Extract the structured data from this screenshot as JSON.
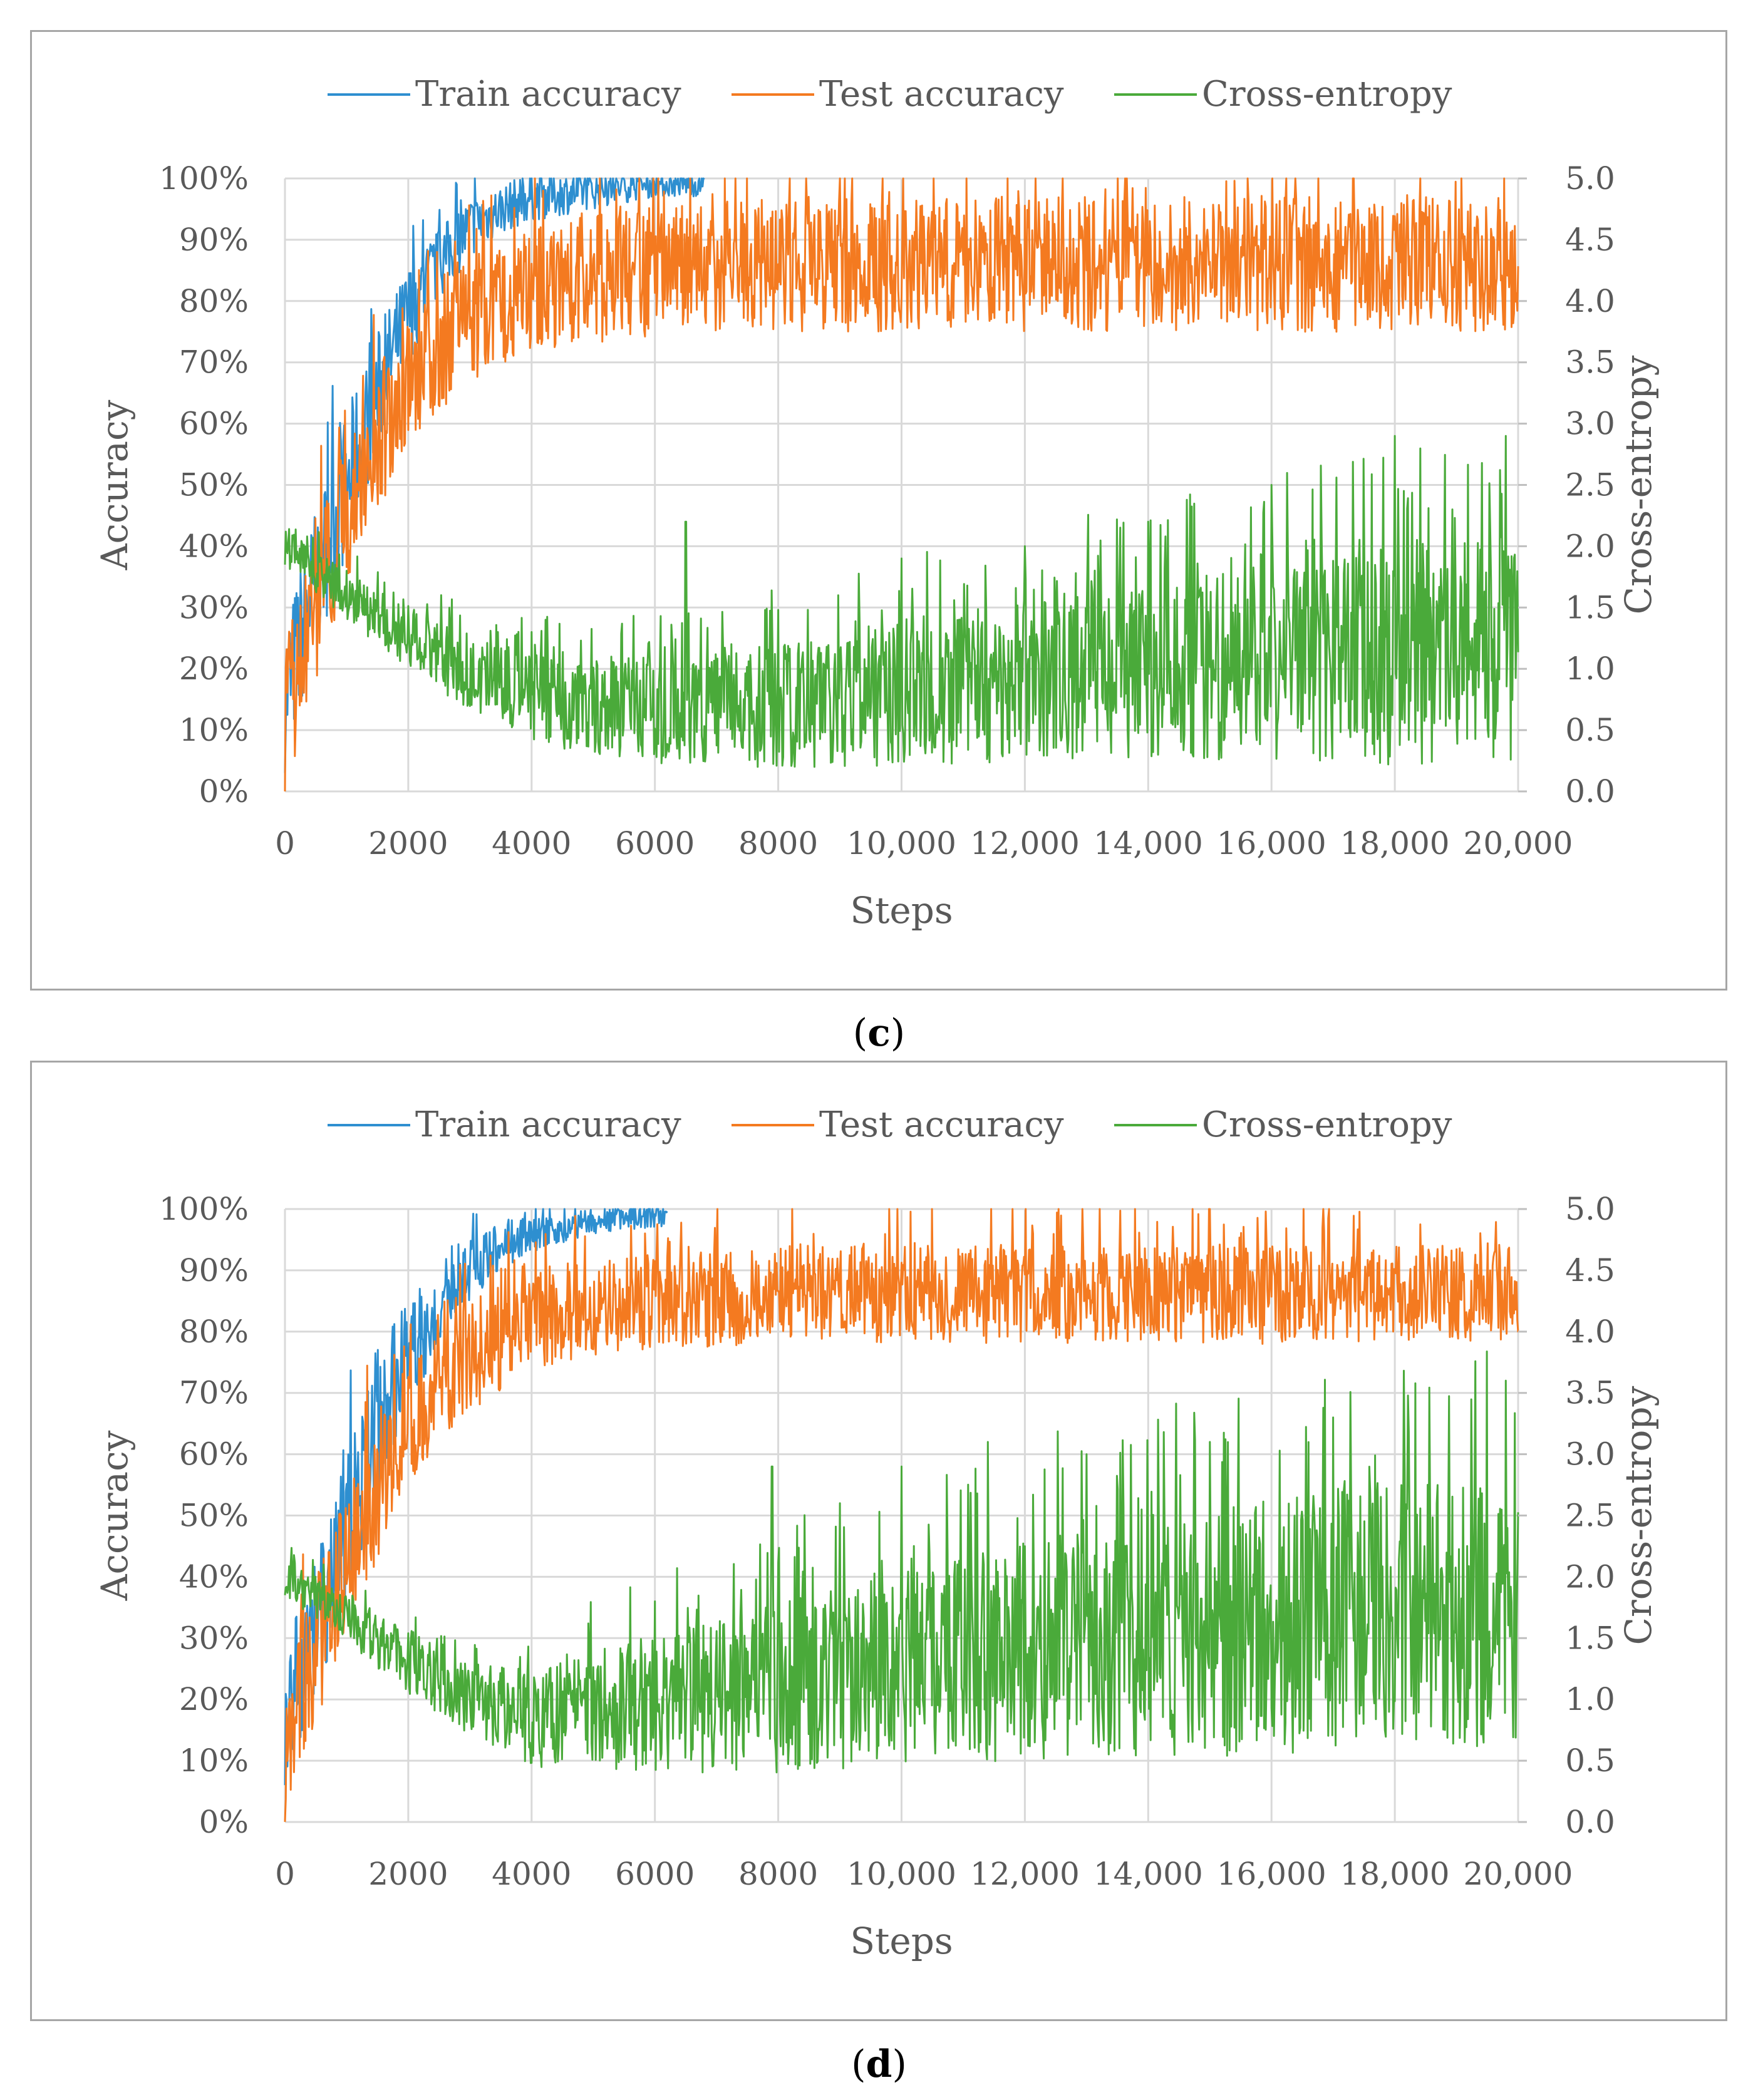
{
  "charts": [
    {
      "id": "c",
      "caption_letter": "c",
      "legend": [
        {
          "label": "Train accuracy",
          "color": "#2e8fd0"
        },
        {
          "label": "Test accuracy",
          "color": "#f47a20"
        },
        {
          "label": "Cross-entropy",
          "color": "#4aaa3a"
        }
      ]
    },
    {
      "id": "d",
      "caption_letter": "d",
      "legend": [
        {
          "label": "Train accuracy",
          "color": "#2e8fd0"
        },
        {
          "label": "Test accuracy",
          "color": "#f47a20"
        },
        {
          "label": "Cross-entropy",
          "color": "#4aaa3a"
        }
      ]
    }
  ],
  "chart_data": [
    {
      "type": "line",
      "panel": "c",
      "xlabel": "Steps",
      "ylabel": "Accuracy",
      "y2label": "Cross-entropy",
      "xlim": [
        0,
        20000
      ],
      "ylim": [
        0,
        100
      ],
      "y2lim": [
        0,
        5
      ],
      "x_ticks": [
        "0",
        "2000",
        "4000",
        "6000",
        "8000",
        "10,000",
        "12,000",
        "14,000",
        "16,000",
        "18,000",
        "20,000"
      ],
      "y_ticks": [
        "0%",
        "10%",
        "20%",
        "30%",
        "40%",
        "50%",
        "60%",
        "70%",
        "80%",
        "90%",
        "100%"
      ],
      "y2_ticks": [
        "0.0",
        "0.5",
        "1.0",
        "1.5",
        "2.0",
        "2.5",
        "3.0",
        "3.5",
        "4.0",
        "4.5",
        "5.0"
      ],
      "grid": true,
      "legend_position": "top",
      "series": [
        {
          "name": "Train accuracy",
          "color": "#2e8fd0",
          "axis": "left",
          "x": [
            0,
            500,
            1000,
            1500,
            2000,
            2500,
            3000,
            3500,
            4000,
            5000,
            6000,
            6800
          ],
          "center": [
            15,
            35,
            50,
            65,
            78,
            86,
            92,
            95,
            97,
            98,
            99,
            99
          ],
          "spread": [
            12,
            12,
            12,
            10,
            8,
            6,
            5,
            4,
            4,
            3,
            2,
            2
          ]
        },
        {
          "name": "Test accuracy",
          "color": "#f47a20",
          "axis": "left",
          "x": [
            0,
            500,
            1000,
            1500,
            2000,
            3000,
            4000,
            5000,
            6000,
            8000,
            20000
          ],
          "center": [
            12,
            30,
            45,
            57,
            67,
            77,
            82,
            84,
            85,
            86,
            86
          ],
          "spread": [
            12,
            12,
            12,
            12,
            10,
            10,
            10,
            11,
            11,
            11,
            11
          ]
        },
        {
          "name": "Cross-entropy",
          "color": "#4aaa3a",
          "axis": "right",
          "x": [
            0,
            1000,
            2000,
            3000,
            4000,
            6000,
            8000,
            10000,
            12000,
            14000,
            16000,
            18000,
            20000
          ],
          "center": [
            2.0,
            1.6,
            1.25,
            0.95,
            0.75,
            0.65,
            0.7,
            0.8,
            0.9,
            1.0,
            1.05,
            1.1,
            1.15
          ],
          "spread": [
            0.15,
            0.2,
            0.25,
            0.3,
            0.35,
            0.45,
            0.5,
            0.6,
            0.65,
            0.75,
            0.8,
            0.9,
            0.95
          ],
          "spikes": [
            [
              1000,
              1.8
            ],
            [
              2000,
              1.5
            ],
            [
              4000,
              1.3
            ],
            [
              6500,
              2.2
            ],
            [
              8000,
              1.6
            ],
            [
              10000,
              1.9
            ],
            [
              12000,
              2.0
            ],
            [
              14000,
              2.2
            ],
            [
              16000,
              2.5
            ],
            [
              18000,
              2.9
            ],
            [
              19800,
              2.9
            ]
          ]
        }
      ]
    },
    {
      "type": "line",
      "panel": "d",
      "xlabel": "Steps",
      "ylabel": "Accuracy",
      "y2label": "Cross-entropy",
      "xlim": [
        0,
        20000
      ],
      "ylim": [
        0,
        100
      ],
      "y2lim": [
        0,
        5
      ],
      "x_ticks": [
        "0",
        "2000",
        "4000",
        "6000",
        "8000",
        "10,000",
        "12,000",
        "14,000",
        "16,000",
        "18,000",
        "20,000"
      ],
      "y_ticks": [
        "0%",
        "10%",
        "20%",
        "30%",
        "40%",
        "50%",
        "60%",
        "70%",
        "80%",
        "90%",
        "100%"
      ],
      "y2_ticks": [
        "0.0",
        "0.5",
        "1.0",
        "1.5",
        "2.0",
        "2.5",
        "3.0",
        "3.5",
        "4.0",
        "4.5",
        "5.0"
      ],
      "grid": true,
      "legend_position": "top",
      "series": [
        {
          "name": "Train accuracy",
          "color": "#2e8fd0",
          "axis": "left",
          "x": [
            0,
            500,
            1000,
            1500,
            2000,
            2500,
            3000,
            3500,
            4000,
            5000,
            6000,
            6200
          ],
          "center": [
            18,
            32,
            48,
            65,
            76,
            84,
            90,
            94,
            96,
            98,
            99,
            99
          ],
          "spread": [
            12,
            12,
            12,
            12,
            9,
            7,
            5,
            4,
            3,
            2,
            2,
            2
          ]
        },
        {
          "name": "Test accuracy",
          "color": "#f47a20",
          "axis": "left",
          "x": [
            0,
            500,
            1000,
            1500,
            2000,
            3000,
            4000,
            5000,
            6000,
            8000,
            20000
          ],
          "center": [
            12,
            28,
            42,
            55,
            65,
            76,
            82,
            84,
            85,
            86,
            86
          ],
          "spread": [
            12,
            12,
            12,
            12,
            10,
            9,
            8,
            8,
            8,
            8,
            8
          ]
        },
        {
          "name": "Cross-entropy",
          "color": "#4aaa3a",
          "axis": "right",
          "x": [
            0,
            1000,
            2000,
            3000,
            4000,
            6000,
            8000,
            10000,
            12000,
            14000,
            16000,
            18000,
            20000
          ],
          "center": [
            2.0,
            1.65,
            1.3,
            1.0,
            0.85,
            0.95,
            1.1,
            1.25,
            1.4,
            1.5,
            1.6,
            1.7,
            1.75
          ],
          "spread": [
            0.15,
            0.2,
            0.25,
            0.3,
            0.4,
            0.55,
            0.7,
            0.8,
            0.9,
            1.0,
            1.05,
            1.1,
            1.15
          ],
          "spikes": [
            [
              6000,
              1.8
            ],
            [
              7900,
              2.9
            ],
            [
              9000,
              2.6
            ],
            [
              10000,
              2.9
            ],
            [
              11400,
              3.1
            ],
            [
              13000,
              3.0
            ],
            [
              15000,
              3.1
            ],
            [
              17000,
              3.3
            ],
            [
              19800,
              3.6
            ]
          ]
        }
      ]
    }
  ]
}
